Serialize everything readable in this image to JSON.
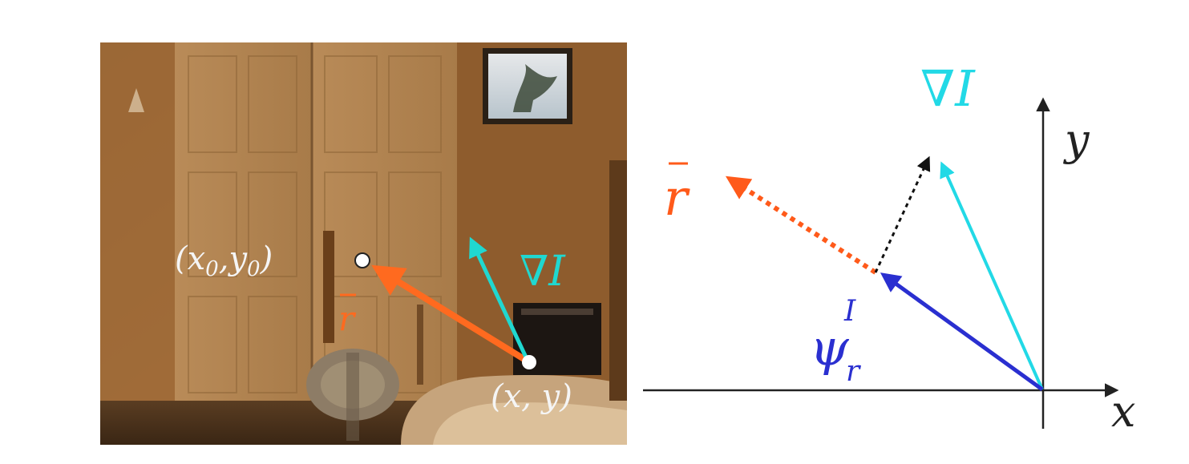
{
  "photo_panel": {
    "label_origin": "(x₀,y₀)",
    "label_origin_x": "x",
    "label_origin_x_sub": "0",
    "label_origin_y": "y",
    "label_origin_y_sub": "0",
    "label_point": "(x, y)",
    "label_point_x": "x",
    "label_point_y": "y",
    "label_r": "r",
    "label_grad": "∇I",
    "colors": {
      "r_vector": "#ff6a1f",
      "grad_vector": "#20d8d0",
      "label_text": "#f5f5f5"
    }
  },
  "axes_panel": {
    "axis_x": "x",
    "axis_y": "y",
    "label_grad": "∇I",
    "label_r": "r",
    "label_psi": "ψ",
    "label_psi_sub": "r",
    "label_psi_sup": "I",
    "colors": {
      "r_vector": "#ff5a1a",
      "grad_vector": "#22d9e6",
      "psi_vector": "#2a2fd0",
      "difference_vector": "#111111",
      "axis": "#222222"
    }
  }
}
